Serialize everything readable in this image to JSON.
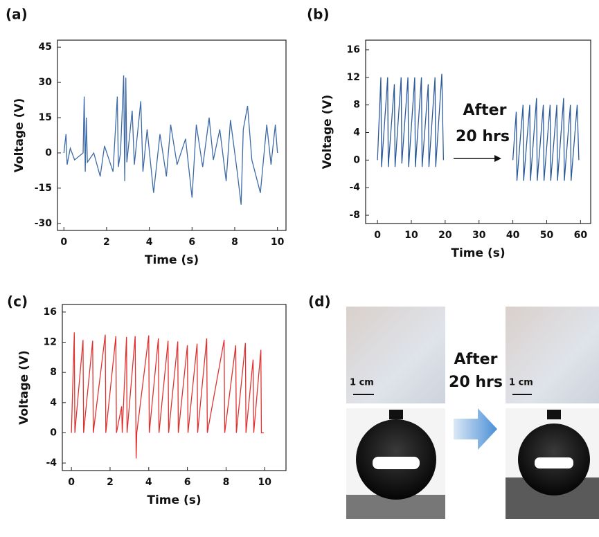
{
  "chart_data": [
    {
      "type": "line",
      "panel": "(a)",
      "x_label": "Time (s)",
      "y_label": "Voltage (V)",
      "color": "#3d6aa6",
      "x": [
        0,
        0.1,
        0.15,
        0.3,
        0.5,
        0.9,
        0.95,
        1.0,
        1.05,
        1.1,
        1.4,
        1.7,
        1.9,
        2.3,
        2.5,
        2.55,
        2.65,
        2.8,
        2.85,
        2.9,
        2.95,
        3.2,
        3.3,
        3.6,
        3.7,
        3.9,
        4.2,
        4.5,
        4.8,
        5.0,
        5.3,
        5.7,
        6.0,
        6.2,
        6.5,
        6.8,
        7.0,
        7.3,
        7.6,
        7.8,
        8.1,
        8.3,
        8.4,
        8.6,
        8.8,
        9.2,
        9.5,
        9.7,
        9.9,
        10
      ],
      "values": [
        0,
        8,
        -5,
        2,
        -3,
        0,
        24,
        -8,
        15,
        -4,
        0,
        -10,
        3,
        -8,
        24,
        -6,
        0,
        33,
        -12,
        32,
        -4,
        18,
        -5,
        22,
        -8,
        10,
        -17,
        8,
        -10,
        12,
        -5,
        6,
        -19,
        12,
        -6,
        15,
        -3,
        10,
        -12,
        14,
        -7,
        -22,
        10,
        20,
        -3,
        -17,
        12,
        -5,
        12,
        0
      ],
      "xlim": [
        -0.3,
        10.4
      ],
      "ylim": [
        -33,
        48
      ],
      "xticks": [
        0,
        2,
        4,
        6,
        8,
        10
      ],
      "yticks": [
        -30,
        -15,
        0,
        15,
        30,
        45
      ]
    },
    {
      "type": "line",
      "panel": "(b)",
      "x_label": "Time (s)",
      "y_label": "Voltage (V)",
      "color": "#2d5b9a",
      "annotations": [
        "After",
        "20 hrs"
      ],
      "x": [
        0,
        1,
        1.2,
        3,
        3.2,
        5,
        5.2,
        7,
        7.2,
        9,
        9.2,
        11,
        11.2,
        13,
        13.2,
        15,
        15.2,
        17,
        17.2,
        19,
        19.5,
        30,
        40,
        41,
        41.2,
        43,
        43.2,
        45,
        45.2,
        47,
        47.2,
        49,
        49.2,
        51,
        51.2,
        53,
        53.2,
        55,
        55.2,
        57,
        57.2,
        59,
        59.5
      ],
      "values": [
        0,
        12,
        -1,
        12,
        -1,
        11,
        -1,
        12,
        -0.5,
        12,
        -1,
        12,
        -1,
        12,
        -1,
        11,
        -1,
        12,
        -1,
        12.5,
        0,
        null,
        0,
        7,
        -3,
        8,
        -3,
        8,
        -3,
        9,
        -3,
        8,
        -3,
        8,
        -3,
        8,
        -3,
        9,
        -3,
        8,
        -3,
        8,
        0
      ],
      "xlim": [
        -3.5,
        63
      ],
      "ylim": [
        -9.2,
        17.4
      ],
      "xticks": [
        0,
        10,
        20,
        30,
        40,
        50,
        60
      ],
      "yticks": [
        -8,
        -4,
        0,
        4,
        8,
        12,
        16
      ]
    },
    {
      "type": "line",
      "panel": "(c)",
      "x_label": "Time (s)",
      "y_label": "Voltage (V)",
      "color": "#e0312f",
      "x": [
        0,
        0.15,
        0.18,
        0.6,
        0.63,
        1.1,
        1.13,
        1.75,
        1.78,
        2.3,
        2.33,
        2.6,
        2.63,
        2.85,
        2.88,
        3.3,
        3.35,
        3.38,
        4.0,
        4.03,
        4.5,
        4.53,
        5.0,
        5.03,
        5.5,
        5.53,
        6.0,
        6.03,
        6.5,
        6.53,
        7.0,
        7.03,
        7.9,
        7.93,
        8.5,
        8.53,
        9.0,
        9.03,
        9.4,
        9.43,
        9.8,
        9.83,
        9.95
      ],
      "values": [
        0,
        13.3,
        0,
        12.3,
        0,
        12.2,
        0,
        13,
        0,
        12.8,
        0,
        3.5,
        0,
        12.7,
        0,
        12.8,
        -3.4,
        0,
        12.9,
        0,
        12.5,
        0,
        12.2,
        0,
        12.1,
        0,
        11.6,
        0,
        11.8,
        0,
        12.5,
        0,
        12.3,
        0,
        11.6,
        0,
        11.9,
        0,
        9.7,
        0,
        11,
        0,
        0
      ],
      "xlim": [
        -0.47,
        11.1
      ],
      "ylim": [
        -5,
        17
      ],
      "xticks": [
        0,
        2,
        4,
        6,
        8,
        10
      ],
      "yticks": [
        -4,
        0,
        4,
        8,
        12,
        16
      ]
    }
  ],
  "panel_d": {
    "panel": "(d)",
    "annotations": [
      "After",
      "20 hrs"
    ],
    "scale_bar": "1 cm"
  }
}
